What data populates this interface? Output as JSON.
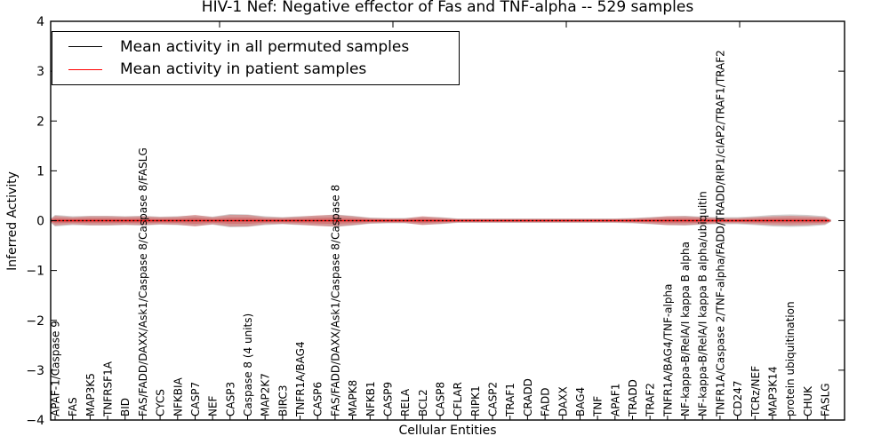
{
  "title": "HIV-1 Nef: Negative effector of Fas and TNF-alpha -- 529 samples",
  "colors": {
    "permuted_line": "#000000",
    "patient_line": "#ff0000",
    "patient_band": "rgba(214,62,62,0.38)",
    "permuted_band": "rgba(128,128,128,0.38)",
    "frame": "#000000"
  },
  "chart_data": {
    "type": "line",
    "title": "HIV-1 Nef: Negative effector of Fas and TNF-alpha -- 529 samples",
    "xlabel": "Cellular Entities",
    "ylabel": "Inferred Activity",
    "ylim": [
      -4,
      4
    ],
    "yticks": [
      4,
      3,
      2,
      1,
      0,
      -1,
      -2,
      -3,
      -4
    ],
    "grid": false,
    "legend_position": "upper left",
    "legend": [
      {
        "label": "Mean activity in all permuted samples",
        "color": "#000000",
        "style": "solid"
      },
      {
        "label": "Mean activity in patient samples",
        "color": "#ff0000",
        "style": "solid"
      }
    ],
    "categories": [
      "APAF-1/Caspase 9",
      "FAS",
      "MAP3K5",
      "TNFRSF1A",
      "BID",
      "FAS/FADD/DAXX/Ask1/Caspase 8/Caspase 8/FASLG",
      "CYCS",
      "NFKBIA",
      "CASP7",
      "NEF",
      "CASP3",
      "Caspase 8 (4 units)",
      "MAP2K7",
      "BIRC3",
      "TNFR1A/BAG4",
      "CASP6",
      "FAS/FADD/DAXX/Ask1/Caspase 8/Caspase 8",
      "MAPK8",
      "NFKB1",
      "CASP9",
      "RELA",
      "BCL2",
      "CASP8",
      "CFLAR",
      "RIPK1",
      "CASP2",
      "TRAF1",
      "CRADD",
      "FADD",
      "DAXX",
      "BAG4",
      "TNF",
      "APAF1",
      "TRADD",
      "TRAF2",
      "TNFR1A/BAG4/TNF-alpha",
      "NF-kappa-B/RelA/I kappa B alpha",
      "NF-kappa-B/RelA/I kappa B alpha/ubiquitin",
      "TNFR1A/Caspase 2/TNF-alpha/FADD/TRADD/RIP1/cIAP2/TRAF1/TRAF2",
      "CD247",
      "TCRz/NEF",
      "MAP3K14",
      "protein ubiquitination",
      "CHUK",
      "FASLG"
    ],
    "series": [
      {
        "name": "Mean activity in all permuted samples",
        "color": "#000000",
        "style": "dotted",
        "values": [
          0,
          0,
          0,
          0,
          0,
          0,
          0,
          0,
          0,
          0,
          0,
          0,
          0,
          0,
          0,
          0,
          0,
          0,
          0,
          0,
          0,
          0,
          0,
          0,
          0,
          0,
          0,
          0,
          0,
          0,
          0,
          0,
          0,
          0,
          0,
          0,
          0,
          0,
          0,
          0,
          0,
          0,
          0,
          0,
          0
        ]
      },
      {
        "name": "Mean activity in patient samples",
        "color": "#ff0000",
        "style": "solid",
        "values": [
          0,
          0,
          0,
          0,
          0,
          0,
          0,
          0,
          0,
          0,
          0,
          0,
          0,
          0,
          0,
          0,
          0,
          0,
          0,
          0,
          0,
          0,
          0,
          0,
          0,
          0,
          0,
          0,
          0,
          0,
          0,
          0,
          0,
          0,
          0,
          0,
          0,
          0,
          0,
          0,
          0,
          0,
          0,
          0,
          0
        ]
      }
    ],
    "patient_band_halfwidth": [
      0.098,
      0.071,
      0.089,
      0.089,
      0.08,
      0.089,
      0.071,
      0.08,
      0.116,
      0.071,
      0.116,
      0.116,
      0.071,
      0.062,
      0.08,
      0.107,
      0.116,
      0.089,
      0.053,
      0.045,
      0.045,
      0.089,
      0.062,
      0.036,
      0.036,
      0.036,
      0.036,
      0.036,
      0.036,
      0.036,
      0.036,
      0.036,
      0.036,
      0.045,
      0.062,
      0.089,
      0.089,
      0.071,
      0.053,
      0.053,
      0.071,
      0.089,
      0.098,
      0.089,
      0.071
    ],
    "permuted_band_halfwidth": [
      0.116,
      0.089,
      0.098,
      0.098,
      0.089,
      0.098,
      0.08,
      0.089,
      0.107,
      0.08,
      0.134,
      0.125,
      0.089,
      0.071,
      0.089,
      0.098,
      0.125,
      0.098,
      0.062,
      0.053,
      0.053,
      0.08,
      0.071,
      0.045,
      0.045,
      0.045,
      0.045,
      0.045,
      0.045,
      0.045,
      0.045,
      0.045,
      0.045,
      0.053,
      0.071,
      0.089,
      0.098,
      0.08,
      0.071,
      0.071,
      0.089,
      0.116,
      0.125,
      0.116,
      0.089
    ]
  }
}
